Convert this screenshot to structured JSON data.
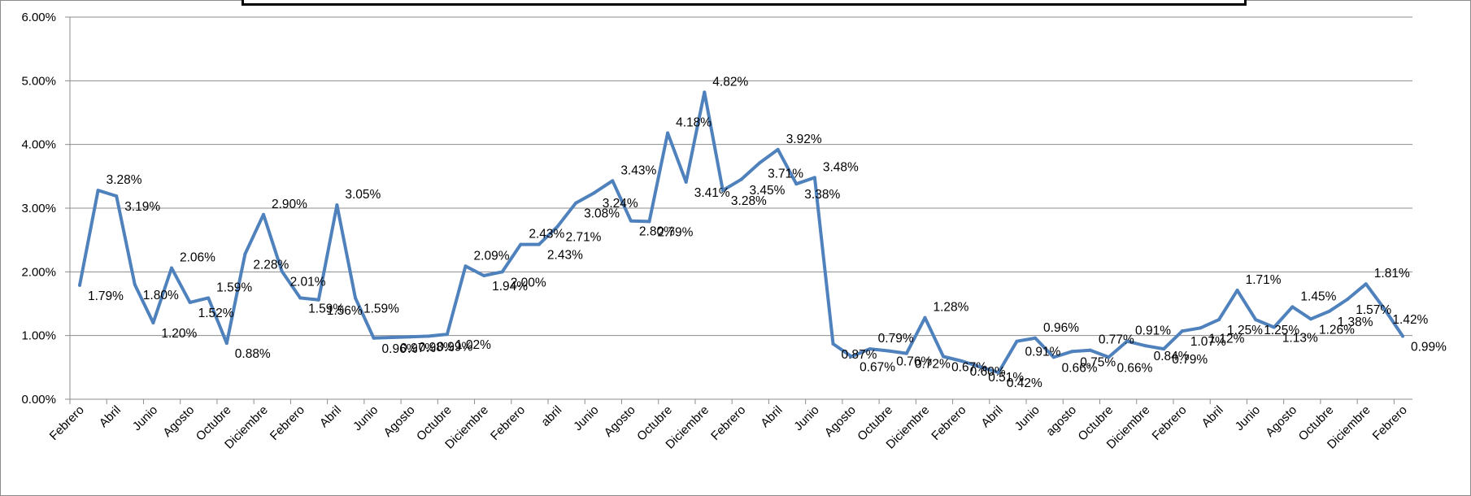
{
  "chart_data": {
    "type": "line",
    "title": "",
    "xlabel": "",
    "ylabel": "",
    "ylim": [
      0,
      0.06
    ],
    "y_ticks": [
      "0.00%",
      "1.00%",
      "2.00%",
      "3.00%",
      "4.00%",
      "5.00%",
      "6.00%"
    ],
    "grid": "horizontal",
    "legend": "none",
    "colors": {
      "line": "#4f81bd",
      "grid": "#8c8c8c",
      "axis": "#8c8c8c"
    },
    "x_tick_labels": [
      "Febrero",
      "Abril",
      "Junio",
      "Agosto",
      "Octubre",
      "Diciembre",
      "Febrero",
      "Abril",
      "Junio",
      "Agosto",
      "Octubre",
      "Diciembre",
      "Febrero",
      "abril",
      "Junio",
      "Agosto",
      "Octubre",
      "Diciembre",
      "Febrero",
      "Abril",
      "Junio",
      "Agosto",
      "Octubre",
      "Diciembre",
      "Febrero",
      "Abril",
      "Junio",
      "agosto",
      "Octubre",
      "Diciembre",
      "Febrero",
      "Abril",
      "Junio",
      "Agosto",
      "Octubre",
      "Diciembre",
      "Febrero"
    ],
    "series": [
      {
        "values": [
          0.0179,
          0.0328,
          0.0319,
          0.018,
          0.012,
          0.0206,
          0.0152,
          0.0159,
          0.0088,
          0.0228,
          0.029,
          0.0201,
          0.0159,
          0.0156,
          0.0305,
          0.0159,
          0.0096,
          0.0097,
          0.0098,
          0.0099,
          0.0102,
          0.0209,
          0.0194,
          0.02,
          0.0243,
          0.0243,
          0.0271,
          0.0308,
          0.0324,
          0.0343,
          0.028,
          0.0279,
          0.0418,
          0.0341,
          0.0482,
          0.0328,
          0.0345,
          0.0371,
          0.0392,
          0.0338,
          0.0348,
          0.0087,
          0.0067,
          0.0079,
          0.0076,
          0.0072,
          0.0128,
          0.0067,
          0.006,
          0.0051,
          0.0042,
          0.0091,
          0.0096,
          0.0066,
          0.0075,
          0.0077,
          0.0066,
          0.0091,
          0.0084,
          0.0079,
          0.0107,
          0.0112,
          0.0125,
          0.0171,
          0.0125,
          0.0113,
          0.0145,
          0.0126,
          0.0138,
          0.0157,
          0.0181,
          0.0142,
          0.0099
        ],
        "labels": [
          "1.79%",
          "3.28%",
          "3.19%",
          "1.80%",
          "1.20%",
          "2.06%",
          "1.52%",
          "1.59%",
          "0.88%",
          "2.28%",
          "2.90%",
          "2.01%",
          "1.59%",
          "1.56%",
          "3.05%",
          "1.59%",
          "0.96%",
          "0.97%",
          "0.98%",
          "0.99%",
          "1.02%",
          "2.09%",
          "1.94%",
          "2.00%",
          "2.43%",
          "2.43%",
          "2.71%",
          "3.08%",
          "3.24%",
          "3.43%",
          "2.80%",
          "2.79%",
          "4.18%",
          "3.41%",
          "4.82%",
          "3.28%",
          "3.45%",
          "3.71%",
          "3.92%",
          "3.38%",
          "3.48%",
          "0.87%",
          "0.67%",
          "0.79%",
          "0.76%",
          "0.72%",
          "1.28%",
          "0.67%",
          "0.60%",
          "0.51%",
          "0.42%",
          "0.91%",
          "0.96%",
          "0.66%",
          "0.75%",
          "0.77%",
          "0.66%",
          "0.91%",
          "0.84%",
          "0.79%",
          "1.07%",
          "1.12%",
          "1.25%",
          "1.71%",
          "1.25%",
          "1.13%",
          "1.45%",
          "1.26%",
          "1.38%",
          "1.57%",
          "1.81%",
          "1.42%",
          "0.99%"
        ]
      }
    ]
  }
}
